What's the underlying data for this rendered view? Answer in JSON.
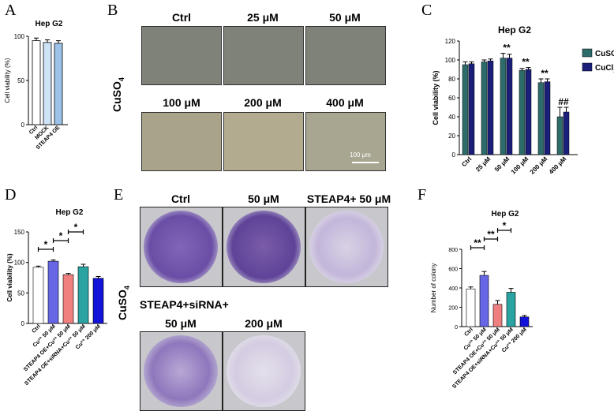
{
  "panel_labels": {
    "A": "A",
    "B": "B",
    "C": "C",
    "D": "D",
    "E": "E",
    "F": "F"
  },
  "colors": {
    "white": "#ffffff",
    "light_blue": "#cfe3f7",
    "mid_blue": "#9cc3ea",
    "teal": "#2e6b6b",
    "navy": "#1a1f7a",
    "purple_bar": "#6666e6",
    "salmon": "#f08080",
    "cyan_bar": "#2aa3a3",
    "blue_bar": "#1212d8",
    "photo": "#7f8278",
    "plate": "#7a5ca8"
  },
  "panel_b": {
    "labels": [
      "Ctrl",
      "25 μM",
      "50 μM",
      "100 μM",
      "200 μM",
      "400 μM"
    ],
    "side_label_main": "CuSO",
    "side_label_sub": "4",
    "scale_bar": "100 μm"
  },
  "panel_e": {
    "top_labels": [
      "Ctrl",
      "50 μM",
      "STEAP4+ 50 μM"
    ],
    "mid_label": "STEAP4+siRNA+",
    "bottom_labels": [
      "50 μM",
      "200 μM"
    ],
    "side_label_main": "CuSO",
    "side_label_sub": "4"
  },
  "chart_data": [
    {
      "panel": "A",
      "type": "bar",
      "title": "Hep G2",
      "ylabel": "Cell viability (%)",
      "ylim": [
        0,
        100
      ],
      "yticks": [
        0,
        50,
        100
      ],
      "categories": [
        "Ctrl",
        "MOCK",
        "STEAP4 OE"
      ],
      "values": [
        95,
        93,
        92
      ],
      "errors": [
        3,
        3,
        3
      ]
    },
    {
      "panel": "C",
      "type": "bar",
      "title": "Hep G2",
      "ylabel": "Cell viability (%)",
      "ylim": [
        0,
        120
      ],
      "yticks": [
        0,
        20,
        40,
        60,
        80,
        100,
        120
      ],
      "categories": [
        "Ctrl",
        "25 μM",
        "50 μM",
        "100 μM",
        "200 μM",
        "400 μM"
      ],
      "series": [
        {
          "name": "CuSO",
          "name_sub": "4",
          "values": [
            95,
            98,
            102,
            89,
            76,
            40
          ],
          "errors": [
            3,
            2,
            5,
            2,
            4,
            10
          ]
        },
        {
          "name": "CuCl",
          "name_sub": "2",
          "values": [
            96,
            99,
            102,
            90,
            77,
            45
          ],
          "errors": [
            2,
            2,
            4,
            2,
            3,
            5
          ]
        }
      ],
      "annotations": [
        "**",
        "**",
        "**",
        "##"
      ],
      "legend": "top-right"
    },
    {
      "panel": "D",
      "type": "bar",
      "title": "Hep G2",
      "ylabel": "Cell viability (%)",
      "ylim": [
        0,
        150
      ],
      "yticks": [
        0,
        50,
        100,
        150
      ],
      "categories": [
        "Ctrl",
        "Cu²⁺ 50 μM",
        "STEAP4 OE+Cu²⁺ 50 μM",
        "STEAP4 OE+siRNA+Cu²⁺ 50 μM",
        "Cu²⁺ 200 μM"
      ],
      "values": [
        92,
        102,
        80,
        93,
        74
      ],
      "errors": [
        2,
        2,
        2,
        4,
        3
      ],
      "significance": [
        "*",
        "*",
        "*"
      ]
    },
    {
      "panel": "F",
      "type": "bar",
      "title": "Hep G2",
      "ylabel": "Number of colony",
      "ylim": [
        0,
        800
      ],
      "yticks": [
        0,
        200,
        400,
        600,
        800
      ],
      "categories": [
        "Ctrl",
        "Cu²⁺ 50 μM",
        "STEAP4 OE+Cu²⁺ 50 μM",
        "STEAP4 OE+siRNA+Cu²⁺ 50 μM",
        "Cu²⁺ 200 μM"
      ],
      "values": [
        390,
        530,
        230,
        355,
        100
      ],
      "errors": [
        20,
        40,
        40,
        40,
        15
      ],
      "significance": [
        "**",
        "**",
        "*"
      ]
    }
  ]
}
